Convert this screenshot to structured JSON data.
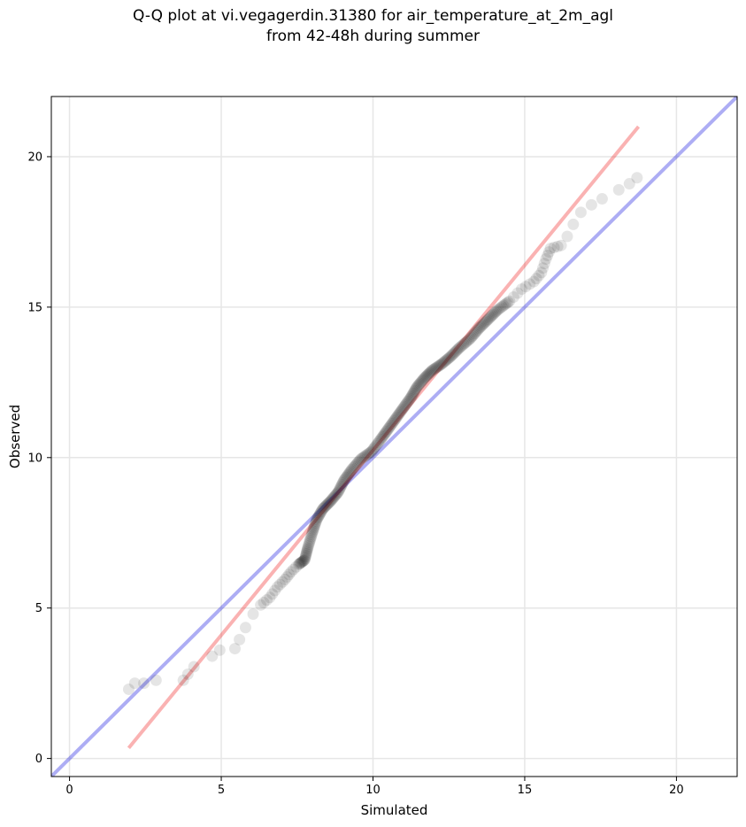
{
  "chart_data": {
    "type": "scatter",
    "title_lines": [
      "Q-Q plot at vi.vegagerdin.31380 for air_temperature_at_2m_agl",
      "from 42-48h during summer"
    ],
    "xlabel": "Simulated",
    "ylabel": "Observed",
    "xlim": [
      -0.6,
      22.0
    ],
    "ylim": [
      -0.6,
      22.0
    ],
    "xticks": [
      0,
      5,
      10,
      15,
      20
    ],
    "yticks": [
      0,
      5,
      10,
      15,
      20
    ],
    "xtick_labels": [
      "0",
      "5",
      "10",
      "15",
      "20"
    ],
    "ytick_labels": [
      "0",
      "5",
      "10",
      "15",
      "20"
    ],
    "grid": true,
    "series": [
      {
        "points": [
          [
            1.95,
            2.3
          ],
          [
            2.15,
            2.5
          ],
          [
            2.45,
            2.5
          ],
          [
            2.85,
            2.6
          ],
          [
            3.75,
            2.6
          ],
          [
            3.9,
            2.8
          ],
          [
            4.1,
            3.05
          ],
          [
            4.7,
            3.4
          ],
          [
            4.95,
            3.6
          ],
          [
            5.45,
            3.65
          ],
          [
            5.6,
            3.95
          ],
          [
            5.8,
            4.35
          ],
          [
            6.05,
            4.8
          ],
          [
            6.3,
            5.1
          ],
          [
            6.6,
            5.35
          ],
          [
            6.85,
            5.7
          ],
          [
            7.1,
            5.95
          ],
          [
            7.3,
            6.2
          ],
          [
            7.55,
            6.45
          ],
          [
            7.75,
            6.6
          ],
          [
            7.85,
            7.0
          ],
          [
            8.0,
            7.5
          ],
          [
            8.15,
            7.95
          ],
          [
            8.35,
            8.3
          ],
          [
            8.6,
            8.55
          ],
          [
            8.85,
            8.85
          ],
          [
            9.05,
            9.25
          ],
          [
            9.3,
            9.6
          ],
          [
            9.6,
            9.95
          ],
          [
            9.95,
            10.2
          ],
          [
            10.25,
            10.6
          ],
          [
            10.5,
            10.95
          ],
          [
            10.75,
            11.3
          ],
          [
            11.0,
            11.65
          ],
          [
            11.25,
            12.0
          ],
          [
            11.45,
            12.35
          ],
          [
            11.7,
            12.65
          ],
          [
            11.95,
            12.9
          ],
          [
            12.25,
            13.1
          ],
          [
            12.55,
            13.35
          ],
          [
            12.85,
            13.65
          ],
          [
            13.2,
            13.95
          ],
          [
            13.5,
            14.3
          ],
          [
            13.8,
            14.6
          ],
          [
            14.1,
            14.9
          ],
          [
            14.5,
            15.2
          ],
          [
            14.9,
            15.6
          ],
          [
            15.3,
            15.85
          ],
          [
            15.55,
            16.15
          ],
          [
            15.7,
            16.6
          ],
          [
            15.85,
            16.95
          ],
          [
            16.2,
            17.05
          ],
          [
            16.4,
            17.35
          ],
          [
            16.6,
            17.75
          ],
          [
            16.85,
            18.15
          ],
          [
            17.2,
            18.4
          ],
          [
            17.55,
            18.6
          ],
          [
            18.1,
            18.9
          ],
          [
            18.45,
            19.1
          ],
          [
            18.7,
            19.3
          ]
        ]
      },
      {
        "type": "line",
        "points": [
          [
            -0.6,
            -0.6
          ],
          [
            22.0,
            22.0
          ]
        ],
        "color": "#0000dd"
      },
      {
        "type": "line",
        "points": [
          [
            1.95,
            0.35
          ],
          [
            18.75,
            21.0
          ]
        ],
        "color": "#ee1111"
      }
    ]
  }
}
